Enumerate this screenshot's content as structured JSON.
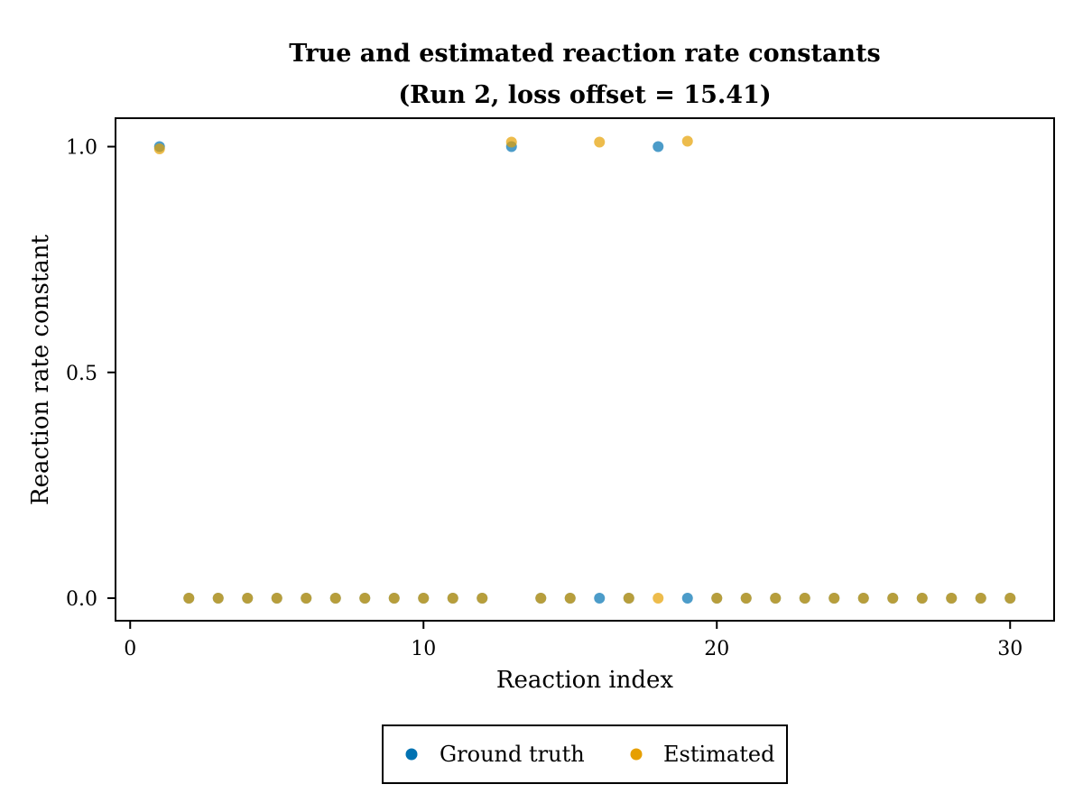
{
  "chart_data": {
    "type": "scatter",
    "title": "True and estimated reaction rate constants",
    "subtitle": "(Run 2, loss offset = 15.41)",
    "xlabel": "Reaction index",
    "ylabel": "Reaction rate constant",
    "xlim": [
      -0.5,
      31.5
    ],
    "ylim": [
      -0.05,
      1.063
    ],
    "xticks": [
      0,
      10,
      20,
      30
    ],
    "yticks": [
      0.0,
      0.5,
      1.0
    ],
    "xtick_labels": [
      "0",
      "10",
      "20",
      "30"
    ],
    "ytick_labels": [
      "0.0",
      "0.5",
      "1.0"
    ],
    "grid": false,
    "legend_position": "bottom-center",
    "series": [
      {
        "name": "Ground truth",
        "color": "#0072B2",
        "x": [
          1,
          2,
          3,
          4,
          5,
          6,
          7,
          8,
          9,
          10,
          11,
          12,
          13,
          14,
          15,
          16,
          17,
          18,
          19,
          20,
          21,
          22,
          23,
          24,
          25,
          26,
          27,
          28,
          29,
          30
        ],
        "y": [
          1.0,
          0,
          0,
          0,
          0,
          0,
          0,
          0,
          0,
          0,
          0,
          0,
          1.0,
          0,
          0,
          0,
          0,
          1.0,
          0,
          0,
          0,
          0,
          0,
          0,
          0,
          0,
          0,
          0,
          0,
          0
        ]
      },
      {
        "name": "Estimated",
        "color": "#E69F00",
        "x": [
          1,
          2,
          3,
          4,
          5,
          6,
          7,
          8,
          9,
          10,
          11,
          12,
          13,
          14,
          15,
          16,
          17,
          18,
          19,
          20,
          21,
          22,
          23,
          24,
          25,
          26,
          27,
          28,
          29,
          30
        ],
        "y": [
          0.995,
          0,
          0,
          0,
          0,
          0,
          0,
          0,
          0,
          0,
          0,
          0,
          1.01,
          0,
          0,
          1.01,
          0,
          0,
          1.012,
          0,
          0,
          0,
          0,
          0,
          0,
          0,
          0,
          0,
          0,
          0
        ]
      }
    ]
  }
}
